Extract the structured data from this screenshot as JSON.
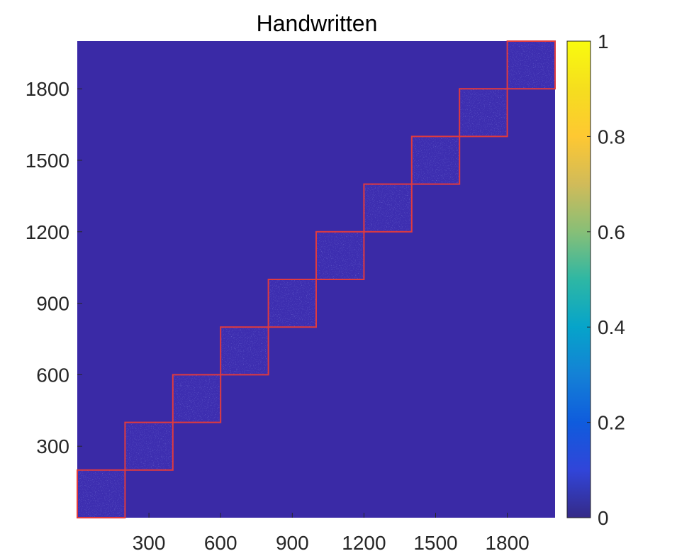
{
  "chart_data": {
    "type": "heatmap",
    "title": "Handwritten",
    "xlabel": "",
    "ylabel": "",
    "xlim": [
      0,
      2000
    ],
    "ylim": [
      0,
      2000
    ],
    "xticks": [
      300,
      600,
      900,
      1200,
      1500,
      1800
    ],
    "yticks": [
      300,
      600,
      900,
      1200,
      1500,
      1800
    ],
    "xtick_labels": [
      "300",
      "600",
      "900",
      "1200",
      "1500",
      "1800"
    ],
    "ytick_labels": [
      "300",
      "600",
      "900",
      "1200",
      "1500",
      "1800"
    ],
    "background_value": 0.03,
    "blocks": [
      {
        "start": 0,
        "end": 200,
        "value": 0.07
      },
      {
        "start": 200,
        "end": 400,
        "value": 0.07
      },
      {
        "start": 400,
        "end": 600,
        "value": 0.07
      },
      {
        "start": 600,
        "end": 800,
        "value": 0.07
      },
      {
        "start": 800,
        "end": 1000,
        "value": 0.07
      },
      {
        "start": 1000,
        "end": 1200,
        "value": 0.07
      },
      {
        "start": 1200,
        "end": 1400,
        "value": 0.07
      },
      {
        "start": 1400,
        "end": 1600,
        "value": 0.07
      },
      {
        "start": 1600,
        "end": 1800,
        "value": 0.07
      },
      {
        "start": 1800,
        "end": 2000,
        "value": 0.07
      }
    ],
    "block_outline_color": "#e03a3e",
    "colorbar": {
      "colormap": "parula",
      "range": [
        0,
        1
      ],
      "ticks": [
        0,
        0.2,
        0.4,
        0.6,
        0.8,
        1
      ],
      "tick_labels": [
        "0",
        "0.2",
        "0.4",
        "0.6",
        "0.8",
        "1"
      ]
    },
    "grid": false
  }
}
